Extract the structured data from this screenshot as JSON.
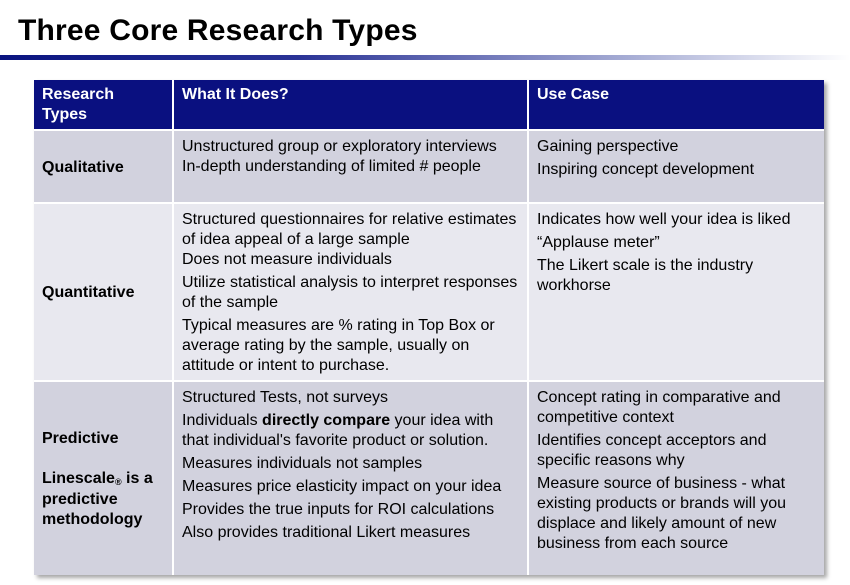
{
  "title": "Three Core Research Types",
  "headers": {
    "col1_line1": "Research",
    "col1_line2": "Types",
    "col2": "What It Does?",
    "col3": "Use Case"
  },
  "rows": [
    {
      "type": "Qualitative",
      "does": [
        "Unstructured group or exploratory interviews",
        "In-depth understanding of limited # people"
      ],
      "use": [
        "Gaining perspective",
        "Inspiring concept development"
      ]
    },
    {
      "type": "Quantitative",
      "does": [
        "Structured questionnaires for relative estimates of idea appeal of a large sample",
        "Does not  measure  individuals",
        "Utilize statistical analysis to interpret responses of the sample",
        "Typical measures are % rating in Top Box or average rating by the sample, usually on attitude or intent to purchase."
      ],
      "use": [
        "Indicates how well your idea is liked",
        "“Applause meter”",
        "The Likert scale is the industry workhorse"
      ]
    },
    {
      "type": "Predictive",
      "type_note_prefix": "Linescale",
      "type_note_mark": "®",
      "type_note_suffix": " is a predictive methodology",
      "does_0": "Structured Tests, not surveys",
      "does_1_pre": "Individuals ",
      "does_1_bold": "directly compare",
      "does_1_post": " your idea with that individual's favorite product or solution.",
      "does_rest": [
        "Measures individuals not samples",
        "Measures price elasticity impact on your idea",
        "Provides the true inputs for ROI calculations",
        "Also provides traditional Likert measures"
      ],
      "use": [
        "Concept rating in comparative and competitive context",
        "Identifies concept acceptors and specific reasons why",
        "Measure source of business - what existing products or brands will you displace and likely amount of new business from each source"
      ]
    }
  ]
}
